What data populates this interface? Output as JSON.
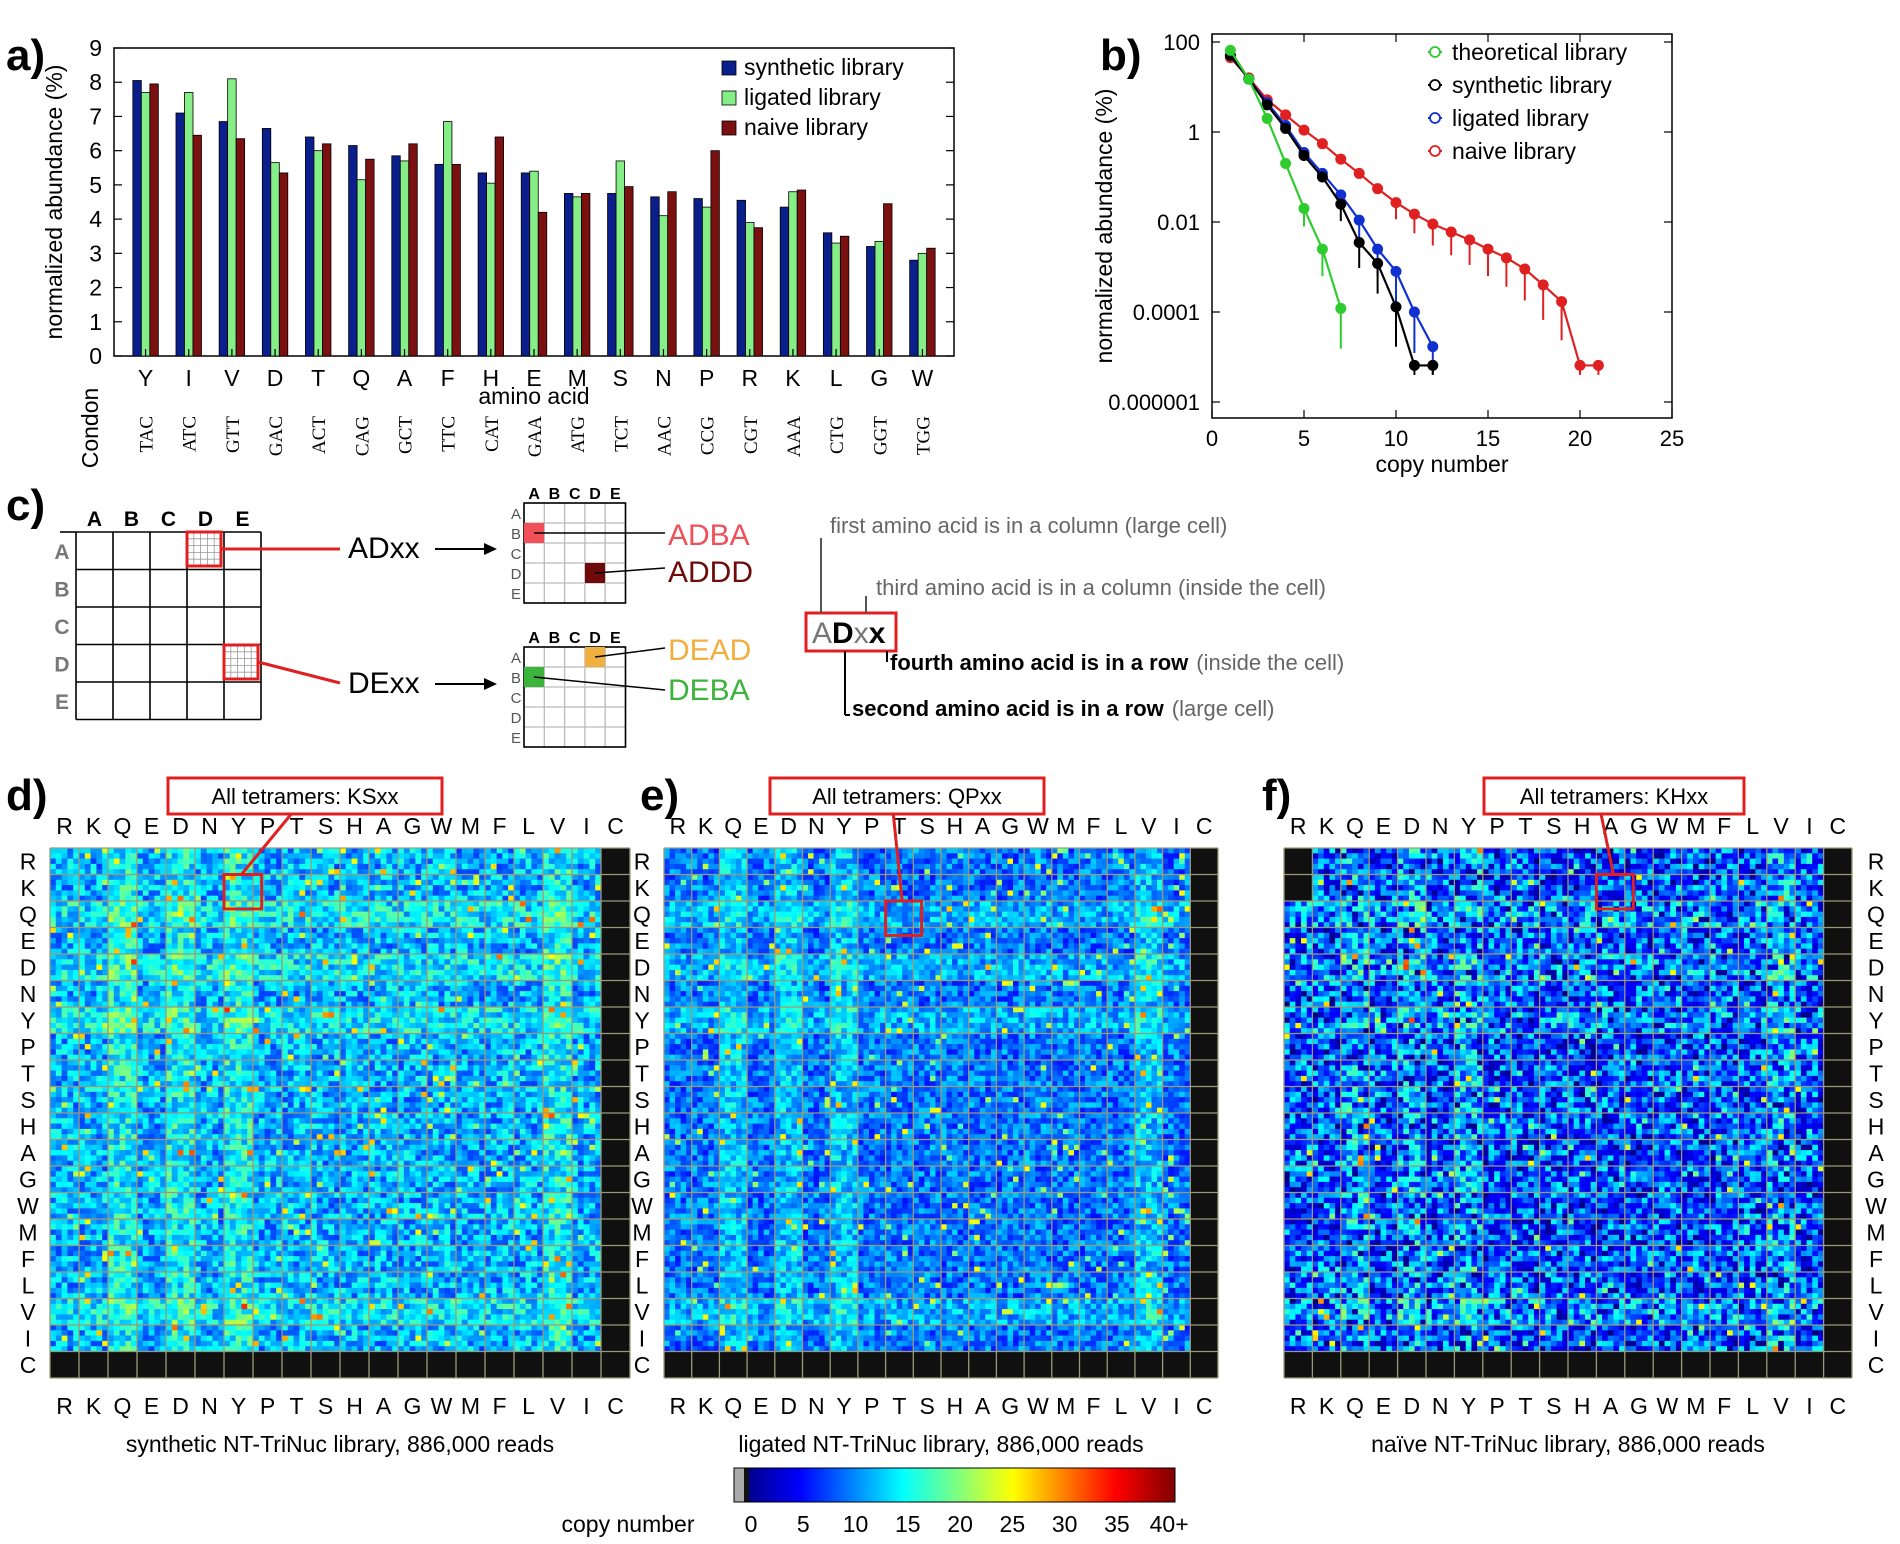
{
  "panels": {
    "a": {
      "label": "a)"
    },
    "b": {
      "label": "b)"
    },
    "c": {
      "label": "c)"
    },
    "d": {
      "label": "d)"
    },
    "e": {
      "label": "e)"
    },
    "f": {
      "label": "f)"
    }
  },
  "chart_data": [
    {
      "id": "a",
      "type": "bar",
      "ylabel": "normalized abundance (%)",
      "xlabel": "amino acid",
      "ylim": [
        0,
        9
      ],
      "yticks": [
        "0",
        "1",
        "2",
        "3",
        "4",
        "5",
        "6",
        "7",
        "8",
        "9"
      ],
      "categories": [
        "Y",
        "I",
        "V",
        "D",
        "T",
        "Q",
        "A",
        "F",
        "H",
        "E",
        "M",
        "S",
        "N",
        "P",
        "R",
        "K",
        "L",
        "G",
        "W"
      ],
      "codon_label": "Condon",
      "codons": [
        "TAC",
        "ATC",
        "GTT",
        "GAC",
        "ACT",
        "CAG",
        "GCT",
        "TTC",
        "CAT",
        "GAA",
        "ATG",
        "TCT",
        "AAC",
        "CCG",
        "CGT",
        "AAA",
        "CTG",
        "GGT",
        "TGG"
      ],
      "series": [
        {
          "name": "synthetic library",
          "color": "#0a1f8c",
          "values": [
            8.05,
            7.1,
            6.85,
            6.65,
            6.4,
            6.15,
            5.85,
            5.6,
            5.35,
            5.35,
            4.75,
            4.75,
            4.65,
            4.6,
            4.55,
            4.35,
            3.6,
            3.2,
            2.8
          ]
        },
        {
          "name": "ligated library",
          "color": "#86ee86",
          "values": [
            7.7,
            7.7,
            8.1,
            5.65,
            6.0,
            5.15,
            5.7,
            6.85,
            5.05,
            5.4,
            4.65,
            5.7,
            4.1,
            4.35,
            3.9,
            4.8,
            3.3,
            3.35,
            3.0
          ]
        },
        {
          "name": "naive library",
          "color": "#7b1010",
          "values": [
            7.95,
            6.45,
            6.35,
            5.35,
            6.2,
            5.75,
            6.2,
            5.6,
            6.4,
            4.2,
            4.75,
            4.95,
            4.8,
            6.0,
            3.75,
            4.85,
            3.5,
            4.45,
            3.15
          ]
        }
      ]
    },
    {
      "id": "b",
      "type": "line",
      "yscale": "log",
      "ylabel": "normalized abundance (%)",
      "xlabel": "copy number",
      "xlim": [
        0,
        25
      ],
      "xticks": [
        "0",
        "5",
        "10",
        "15",
        "20",
        "25"
      ],
      "yticks": [
        "100",
        "1",
        "0.01",
        "0.0001",
        "0.000001"
      ],
      "series": [
        {
          "name": "theoretical library",
          "color": "#2ecc2e",
          "x": [
            1,
            2,
            3,
            4,
            5,
            6,
            7
          ],
          "y": [
            65,
            15,
            2.0,
            0.2,
            0.02,
            0.0025,
            0.00012
          ]
        },
        {
          "name": "synthetic library",
          "color": "#000000",
          "x": [
            1,
            2,
            3,
            4,
            5,
            6,
            7,
            8,
            9,
            10,
            11,
            12
          ],
          "y": [
            50,
            15,
            4.0,
            1.2,
            0.3,
            0.1,
            0.025,
            0.0035,
            0.0012,
            0.00013,
            6.5e-06,
            6.5e-06
          ]
        },
        {
          "name": "ligated library",
          "color": "#1030d0",
          "x": [
            1,
            2,
            3,
            4,
            5,
            6,
            7,
            8,
            9,
            10,
            11,
            12
          ],
          "y": [
            50,
            15,
            4.5,
            1.4,
            0.35,
            0.12,
            0.04,
            0.011,
            0.0025,
            0.0008,
            0.0001,
            1.7e-05
          ]
        },
        {
          "name": "naive library",
          "color": "#e02020",
          "x": [
            1,
            2,
            3,
            4,
            5,
            6,
            7,
            8,
            9,
            10,
            11,
            12,
            13,
            14,
            15,
            16,
            17,
            18,
            19,
            20,
            21
          ],
          "y": [
            45,
            16,
            5.2,
            2.4,
            1.1,
            0.55,
            0.25,
            0.12,
            0.055,
            0.027,
            0.015,
            0.009,
            0.006,
            0.004,
            0.0025,
            0.0016,
            0.0009,
            0.0004,
            0.00017,
            6.5e-06,
            6.5e-06
          ]
        }
      ]
    },
    {
      "id": "d",
      "type": "heatmap",
      "box": "All tetramers: KSxx",
      "caption": "synthetic NT-TriNuc library, 886,000 reads",
      "labels": [
        "R",
        "K",
        "Q",
        "E",
        "D",
        "N",
        "Y",
        "P",
        "T",
        "S",
        "H",
        "A",
        "G",
        "W",
        "M",
        "F",
        "L",
        "V",
        "I",
        "C"
      ]
    },
    {
      "id": "e",
      "type": "heatmap",
      "box": "All tetramers: QPxx",
      "caption": "ligated NT-TriNuc library, 886,000 reads",
      "labels": [
        "R",
        "K",
        "Q",
        "E",
        "D",
        "N",
        "Y",
        "P",
        "T",
        "S",
        "H",
        "A",
        "G",
        "W",
        "M",
        "F",
        "L",
        "V",
        "I",
        "C"
      ]
    },
    {
      "id": "f",
      "type": "heatmap",
      "box": "All tetramers: KHxx",
      "caption": "naïve NT-TriNuc library, 886,000 reads",
      "labels": [
        "R",
        "K",
        "Q",
        "E",
        "D",
        "N",
        "Y",
        "P",
        "T",
        "S",
        "H",
        "A",
        "G",
        "W",
        "M",
        "F",
        "L",
        "V",
        "I",
        "C"
      ]
    }
  ],
  "colorbar": {
    "label": "copy number",
    "ticks": [
      "0",
      "5",
      "10",
      "15",
      "20",
      "25",
      "30",
      "35",
      "40+"
    ]
  },
  "schematic": {
    "letters": [
      "A",
      "B",
      "C",
      "D",
      "E"
    ],
    "addx": "ADxx",
    "dexx": "DExx",
    "adba": "ADBA",
    "addd": "ADDD",
    "dead": "DEAD",
    "deba": "DEBA",
    "adba_color": "#f0505a",
    "addd_color": "#6e0a0a",
    "dead_color": "#f0b040",
    "deba_color": "#3cb43c",
    "explain_first": "first amino acid is in a column (large cell)",
    "explain_third": "third amino acid is in a column  (inside the cell)",
    "explain_fourth_bold": "fourth amino acid is in a row",
    "explain_fourth_rest": "(inside the cell)",
    "explain_second_bold": "second amino acid is in a row",
    "explain_second_rest": "(large cell)",
    "word_a": "A",
    "word_d": "D",
    "word_x1": "x",
    "word_x2": "x"
  }
}
